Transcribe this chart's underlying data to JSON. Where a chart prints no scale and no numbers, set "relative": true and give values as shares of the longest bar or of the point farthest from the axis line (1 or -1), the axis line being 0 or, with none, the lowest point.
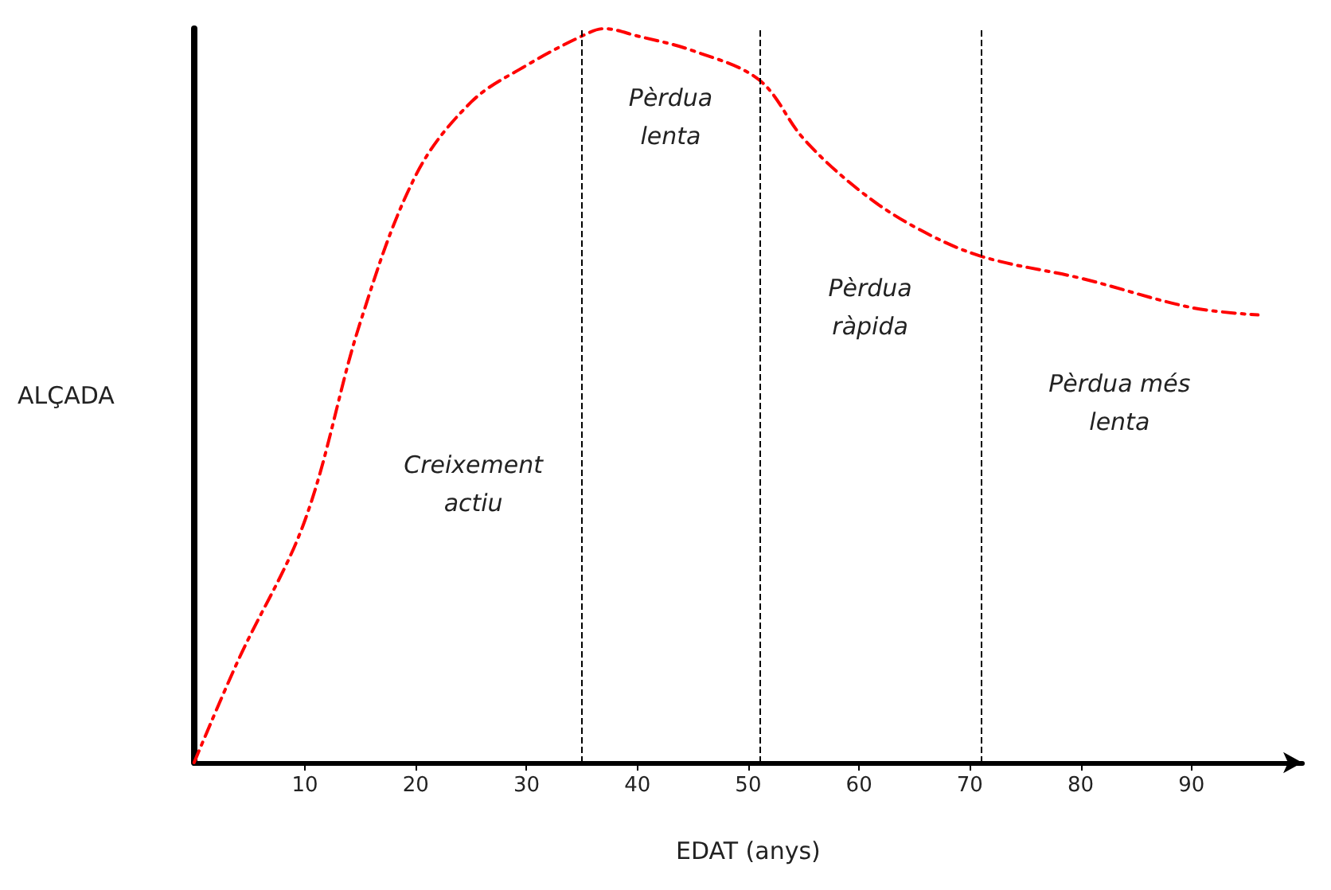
{
  "chart_data": {
    "type": "line",
    "relative": true,
    "xlabel": "EDAT (anys)",
    "ylabel": "ALÇADA",
    "x": [
      0,
      4,
      10,
      15,
      20,
      25,
      30,
      35,
      37,
      40,
      45,
      51,
      55,
      60,
      65,
      71,
      80,
      90,
      96
    ],
    "series": [
      {
        "color": "#ff0000",
        "line_style": "dashed",
        "values": [
          0,
          0.14,
          0.33,
          0.6,
          0.8,
          0.9,
          0.95,
          0.99,
          1,
          0.99,
          0.97,
          0.93,
          0.85,
          0.78,
          0.73,
          0.69,
          0.66,
          0.62,
          0.61
        ]
      }
    ],
    "xlim": [
      0,
      100
    ],
    "xticks": [
      10,
      20,
      30,
      40,
      50,
      60,
      70,
      80,
      90
    ],
    "ref_lines": [
      {
        "axis": "x",
        "value": 35,
        "color": "#000000",
        "line_style": "dashed"
      },
      {
        "axis": "x",
        "value": 51,
        "color": "#000000",
        "line_style": "dashed"
      },
      {
        "axis": "x",
        "value": 71,
        "color": "#000000",
        "line_style": "dashed"
      }
    ],
    "annotations": [
      "Creixement\nactiu",
      "Pèrdua\nlenta",
      "Pèrdua\nràpida",
      "Pèrdua més\nlenta"
    ],
    "grid": false,
    "marker": "none",
    "tick_labels": "x"
  }
}
